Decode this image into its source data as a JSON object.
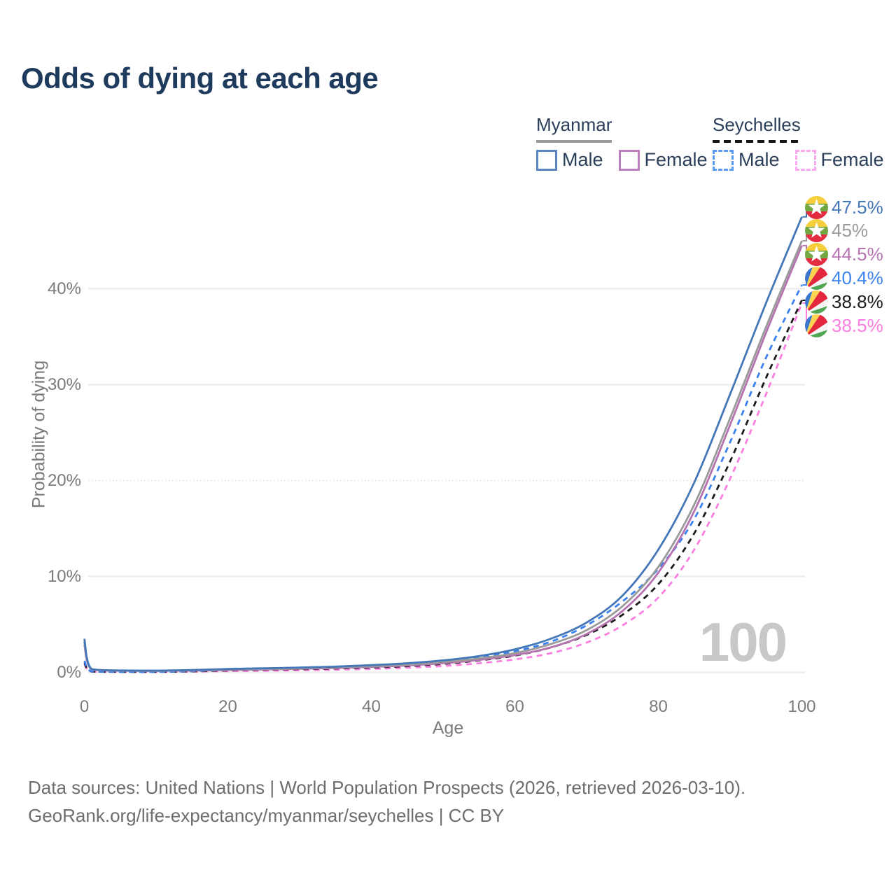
{
  "title": "Odds of dying at each age",
  "watermark_age": "100",
  "legend": {
    "groups": [
      {
        "label": "Myanmar",
        "underline_style": "solid",
        "underline_color": "#9a9a9a",
        "items": [
          {
            "label": "Male",
            "color": "#5b86c4",
            "dashed": false
          },
          {
            "label": "Female",
            "color": "#bd7ec0",
            "dashed": false
          }
        ]
      },
      {
        "label": "Seychelles",
        "underline_style": "dashed",
        "underline_color": "#141414",
        "items": [
          {
            "label": "Male",
            "color": "#5c9bf3",
            "dashed": true
          },
          {
            "label": "Female",
            "color": "#fba9ee",
            "dashed": true
          }
        ]
      }
    ]
  },
  "chart_data": {
    "type": "line",
    "title": "Odds of dying at each age",
    "xlabel": "Age",
    "ylabel": "Probability of dying",
    "xlim": [
      0,
      100
    ],
    "ylim": [
      0,
      49
    ],
    "grid": "horizontal",
    "x_ticks": [
      {
        "v": 0,
        "label": "0"
      },
      {
        "v": 20,
        "label": "20"
      },
      {
        "v": 40,
        "label": "40"
      },
      {
        "v": 60,
        "label": "60"
      },
      {
        "v": 80,
        "label": "80"
      },
      {
        "v": 100,
        "label": "100"
      }
    ],
    "y_ticks": [
      {
        "v": 0,
        "label": "0%",
        "dotted": false
      },
      {
        "v": 10,
        "label": "10%",
        "dotted": false
      },
      {
        "v": 20,
        "label": "20%",
        "dotted": true
      },
      {
        "v": 30,
        "label": "30%",
        "dotted": false
      },
      {
        "v": 40,
        "label": "40%",
        "dotted": false
      }
    ],
    "ages": [
      0,
      1,
      5,
      10,
      15,
      20,
      25,
      30,
      35,
      40,
      45,
      50,
      55,
      60,
      65,
      70,
      75,
      80,
      85,
      90,
      95,
      100
    ],
    "series": [
      {
        "name": "Myanmar Male",
        "country": "Myanmar",
        "sex": "Male",
        "flag": "myanmar",
        "color": "#4477b7",
        "dashed": false,
        "end_label": "47.5%",
        "values": [
          3.5,
          0.35,
          0.2,
          0.18,
          0.25,
          0.35,
          0.42,
          0.5,
          0.6,
          0.75,
          0.95,
          1.25,
          1.7,
          2.4,
          3.5,
          5.2,
          8.0,
          12.8,
          19.8,
          29.0,
          38.5,
          47.5
        ]
      },
      {
        "name": "Myanmar Both sexes",
        "country": "Myanmar",
        "sex": "Both",
        "flag": "myanmar",
        "color": "#9a9a9a",
        "dashed": false,
        "end_label": "45%",
        "values": [
          3.2,
          0.32,
          0.18,
          0.16,
          0.22,
          0.3,
          0.36,
          0.43,
          0.52,
          0.65,
          0.82,
          1.08,
          1.45,
          2.0,
          2.95,
          4.4,
          6.9,
          11.0,
          17.5,
          26.5,
          36.0,
          45.0
        ]
      },
      {
        "name": "Myanmar Female",
        "country": "Myanmar",
        "sex": "Female",
        "flag": "myanmar",
        "color": "#b673b2",
        "dashed": false,
        "end_label": "44.5%",
        "values": [
          2.9,
          0.3,
          0.17,
          0.15,
          0.18,
          0.24,
          0.3,
          0.37,
          0.45,
          0.57,
          0.72,
          0.95,
          1.3,
          1.8,
          2.6,
          4.0,
          6.4,
          10.4,
          16.8,
          25.8,
          35.4,
          44.5
        ]
      },
      {
        "name": "Seychelles Male",
        "country": "Seychelles",
        "sex": "Male",
        "flag": "seychelles",
        "color": "#3c82ef",
        "dashed": true,
        "end_label": "40.4%",
        "values": [
          1.2,
          0.1,
          0.06,
          0.06,
          0.12,
          0.25,
          0.35,
          0.42,
          0.5,
          0.62,
          0.8,
          1.1,
          1.55,
          2.2,
          3.2,
          4.9,
          7.4,
          10.8,
          16.0,
          24.0,
          32.8,
          40.4
        ]
      },
      {
        "name": "Seychelles Both sexes",
        "country": "Seychelles",
        "sex": "Both",
        "flag": "seychelles",
        "color": "#1c1c1c",
        "dashed": true,
        "end_label": "38.8%",
        "values": [
          1.0,
          0.09,
          0.05,
          0.05,
          0.1,
          0.2,
          0.27,
          0.33,
          0.4,
          0.5,
          0.65,
          0.88,
          1.25,
          1.75,
          2.6,
          3.9,
          6.0,
          9.2,
          14.5,
          22.0,
          30.7,
          38.8
        ]
      },
      {
        "name": "Seychelles Female",
        "country": "Seychelles",
        "sex": "Female",
        "flag": "seychelles",
        "color": "#fb7ee0",
        "dashed": true,
        "end_label": "38.5%",
        "values": [
          0.85,
          0.08,
          0.05,
          0.05,
          0.08,
          0.13,
          0.17,
          0.22,
          0.28,
          0.36,
          0.48,
          0.66,
          0.95,
          1.35,
          2.0,
          3.1,
          4.9,
          7.8,
          12.8,
          20.2,
          29.0,
          38.5
        ]
      }
    ]
  },
  "footer": {
    "line1": "Data sources: United Nations | World Population Prospects (2026, retrieved 2026-03-10).",
    "line2": "GeoRank.org/life-expectancy/myanmar/seychelles | CC BY"
  }
}
